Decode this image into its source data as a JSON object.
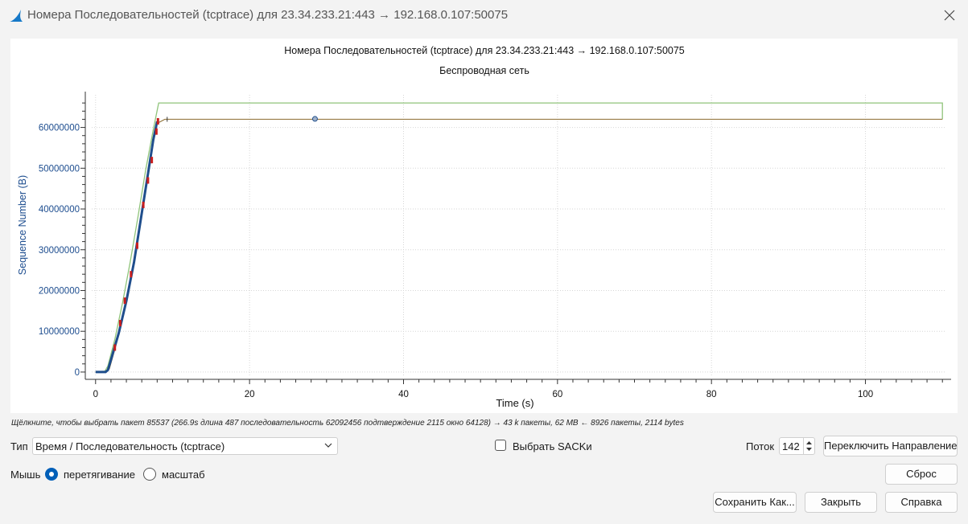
{
  "window": {
    "title": "Номера Последовательностей (tcptrace) для 23.34.233.21:443 → 192.168.0.107:50075",
    "close_icon": "close-icon",
    "app_icon": "wireshark-fin-icon",
    "app_icon_color": "#1679c8"
  },
  "chart_data": {
    "type": "scatter",
    "title": "Номера Последовательностей (tcptrace) для 23.34.233.21:443 → 192.168.0.107:50075",
    "subtitle": "Беспроводная сеть",
    "xlabel": "Time (s)",
    "ylabel": "Sequence Number (B)",
    "xlim": [
      -0.5,
      110.5
    ],
    "ylim": [
      -1000000,
      68000000
    ],
    "x_ticks": [
      0,
      20,
      40,
      60,
      80,
      100
    ],
    "y_ticks": [
      0,
      10000000,
      20000000,
      30000000,
      40000000,
      50000000,
      60000000
    ],
    "x_tick_labels": [
      "0",
      "20",
      "40",
      "60",
      "80",
      "100"
    ],
    "y_tick_labels": [
      "0",
      "10000000",
      "20000000",
      "30000000",
      "40000000",
      "50000000",
      "60000000"
    ],
    "grid": true,
    "colors": {
      "segments": "#1f4e8c",
      "ack": "#8b6b2e",
      "window": "#8fc47a",
      "sack": "#c81e1e",
      "axis_text": "#1d4d8f"
    },
    "series": [
      {
        "values": [
          [
            0,
            0
          ],
          [
            1.3,
            0
          ],
          [
            1.6,
            500000
          ],
          [
            2,
            3000000
          ],
          [
            3,
            9500000
          ],
          [
            4,
            17500000
          ],
          [
            5,
            27000000
          ],
          [
            6,
            39000000
          ],
          [
            7,
            51000000
          ],
          [
            7.5,
            57000000
          ],
          [
            8,
            61500000
          ]
        ]
      },
      {
        "values": [
          [
            0,
            0
          ],
          [
            1.4,
            0
          ],
          [
            1.8,
            800000
          ],
          [
            2.5,
            5500000
          ],
          [
            3.5,
            13000000
          ],
          [
            4.5,
            22500000
          ],
          [
            5.5,
            33000000
          ],
          [
            6.5,
            45000000
          ],
          [
            7.6,
            57500000
          ],
          [
            8,
            61000000
          ],
          [
            9,
            62000000
          ],
          [
            110,
            62000000
          ]
        ]
      },
      {
        "values": [
          [
            0,
            100000
          ],
          [
            1.2,
            200000
          ],
          [
            1.6,
            1500000
          ],
          [
            2.5,
            8000000
          ],
          [
            3.5,
            17000000
          ],
          [
            4.5,
            27000000
          ],
          [
            5.5,
            38000000
          ],
          [
            6.5,
            49500000
          ],
          [
            7.5,
            59500000
          ],
          [
            8.2,
            66000000
          ],
          [
            110,
            66000000
          ],
          [
            110,
            62000000
          ]
        ]
      },
      {
        "values": [
          [
            2.5,
            6000000
          ],
          [
            3.2,
            12000000
          ],
          [
            3.8,
            17500000
          ],
          [
            4.6,
            24000000
          ],
          [
            5.4,
            31000000
          ],
          [
            6.2,
            41000000
          ],
          [
            6.8,
            47000000
          ],
          [
            7.3,
            52000000
          ],
          [
            7.9,
            59000000
          ],
          [
            8.1,
            61500000
          ],
          [
            28.5,
            62100000
          ]
        ]
      }
    ]
  },
  "status": {
    "text": "Щёлкните, чтобы выбрать пакет 85537 (266.9s длина 487 последовательность 62092456 подтверждение 2115 окно 64128) → 43 k пакеты, 62 MB ← 8926 пакеты, 2114 bytes"
  },
  "controls": {
    "type_label": "Тип",
    "type_value": "Время / Последовательность (tcptrace)",
    "sack_label": "Выбрать SACKи",
    "stream_label": "Поток",
    "stream_value": "142",
    "switch_direction": "Переключить Направление",
    "mouse_label": "Мышь",
    "drag_label": "перетягивание",
    "zoom_label": "масштаб",
    "reset": "Сброс",
    "save_as": "Сохранить Как...",
    "close": "Закрыть",
    "help": "Справка"
  }
}
